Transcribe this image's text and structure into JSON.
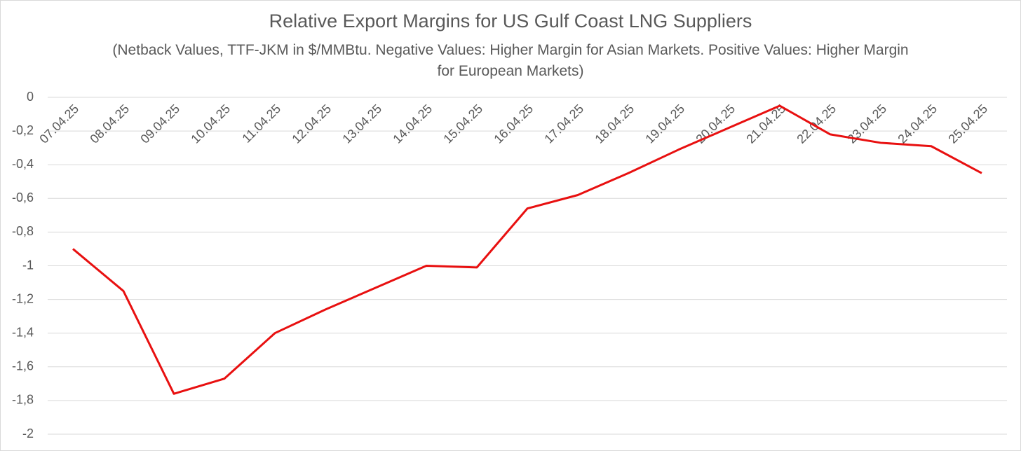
{
  "chart_data": {
    "type": "line",
    "title": "Relative Export Margins for US Gulf Coast LNG Suppliers",
    "subtitle": "(Netback Values, TTF-JKM in $/MMBtu. Negative Values: Higher Margin for Asian Markets. Positive Values: Higher Margin for European Markets)",
    "categories": [
      "07.04.25",
      "08.04.25",
      "09.04.25",
      "10.04.25",
      "11.04.25",
      "12.04.25",
      "13.04.25",
      "14.04.25",
      "15.04.25",
      "16.04.25",
      "17.04.25",
      "18.04.25",
      "19.04.25",
      "20.04.25",
      "21.04.25",
      "22.04.25",
      "23.04.25",
      "24.04.25",
      "25.04.25"
    ],
    "series": [
      {
        "color": "#e81010",
        "values": [
          -0.9,
          -1.15,
          -1.76,
          -1.67,
          -1.4,
          -1.26,
          -1.13,
          -1.0,
          -1.01,
          -0.66,
          -0.58,
          -0.45,
          -0.31,
          -0.18,
          -0.05,
          -0.22,
          -0.27,
          -0.29,
          -0.45
        ]
      }
    ],
    "ylim": [
      -2,
      0
    ],
    "yticks": [
      {
        "value": -2,
        "label": "-2"
      },
      {
        "value": -1.8,
        "label": "-1,8"
      },
      {
        "value": -1.6,
        "label": "-1,6"
      },
      {
        "value": -1.4,
        "label": "-1,4"
      },
      {
        "value": -1.2,
        "label": "-1,2"
      },
      {
        "value": -1,
        "label": "-1"
      },
      {
        "value": -0.8,
        "label": "-0,8"
      },
      {
        "value": -0.6,
        "label": "-0,6"
      },
      {
        "value": -0.4,
        "label": "-0,4"
      },
      {
        "value": -0.2,
        "label": "-0,2"
      },
      0
    ],
    "grid": true
  }
}
